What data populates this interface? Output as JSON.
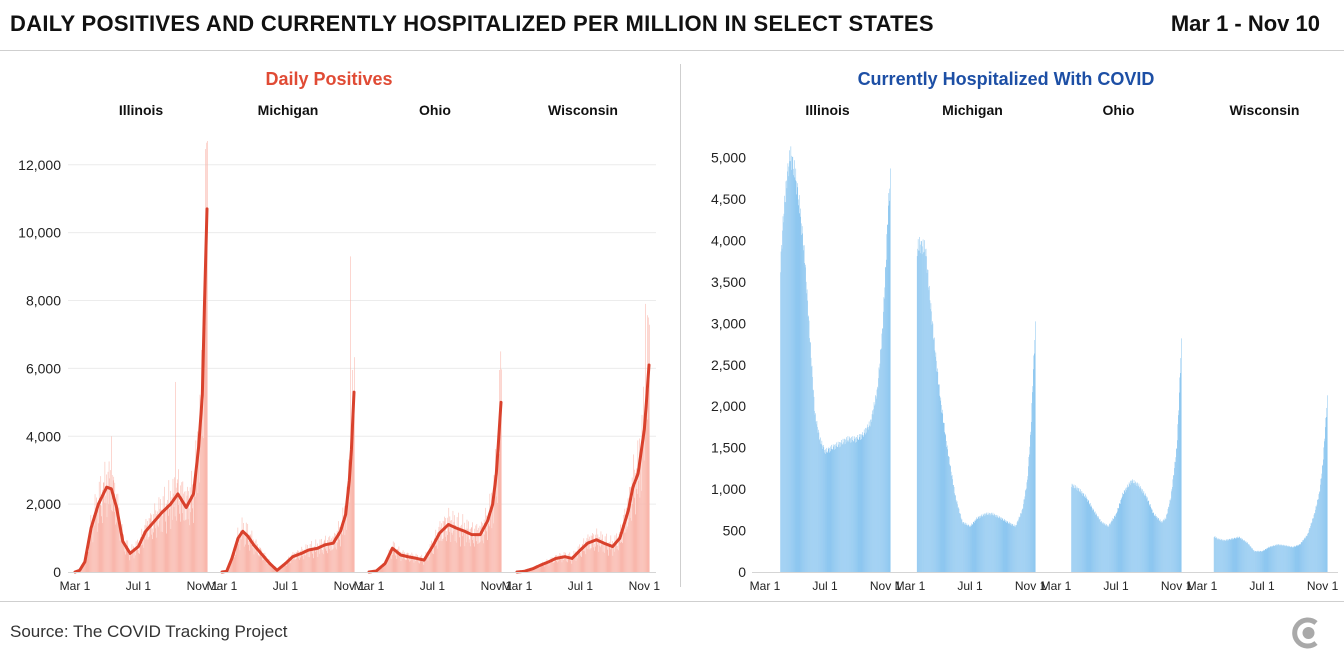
{
  "header": {
    "title": "DAILY POSITIVES AND CURRENTLY HOSPITALIZED PER MILLION IN SELECT STATES",
    "date_range": "Mar 1 - Nov 10"
  },
  "footer": {
    "source": "Source: The COVID Tracking Project",
    "logo_icon": "covid-tracking-project-logo-icon"
  },
  "colors": {
    "positives_bar": "#f9b7ac",
    "positives_line": "#d9412c",
    "positives_title": "#e04b35",
    "hospitalized_bar": "#8ec7f0",
    "hospitalized_title": "#1d4fa5",
    "grid": "#ececec",
    "logo": "#a9a9a9"
  },
  "chart_data": [
    {
      "type": "bar",
      "title": "Daily Positives",
      "facets": [
        "Illinois",
        "Michigan",
        "Ohio",
        "Wisconsin"
      ],
      "x_ticks": [
        "Mar 1",
        "Jul 1",
        "Nov 1"
      ],
      "y_ticks": [
        0,
        2000,
        4000,
        6000,
        8000,
        10000,
        12000
      ],
      "y_tick_labels": [
        "0",
        "2,000",
        "4,000",
        "6,000",
        "8,000",
        "10,000",
        "12,000"
      ],
      "ylim": [
        0,
        12700
      ],
      "x_range": [
        "Mar 1",
        "Nov 10"
      ],
      "grid": true,
      "series_style": "bars with 7-day average line",
      "series": [
        {
          "name": "Illinois",
          "dates": [
            "Mar 1",
            "Mar 10",
            "Mar 20",
            "Apr 1",
            "Apr 15",
            "May 1",
            "May 10",
            "May 20",
            "Jun 1",
            "Jun 15",
            "Jul 1",
            "Jul 15",
            "Aug 1",
            "Aug 15",
            "Sep 1",
            "Sep 15",
            "Oct 1",
            "Oct 15",
            "Oct 25",
            "Nov 1",
            "Nov 5",
            "Nov 10"
          ],
          "values": [
            0,
            50,
            300,
            1300,
            2000,
            2500,
            2450,
            1900,
            900,
            550,
            750,
            1200,
            1500,
            1750,
            2000,
            2300,
            1900,
            2300,
            3700,
            5200,
            7800,
            10700
          ],
          "peaks": [
            {
              "date": "May 10",
              "value": 4000
            },
            {
              "date": "Sep 10",
              "value": 5600
            },
            {
              "date": "Nov 9",
              "value": 12650
            }
          ]
        },
        {
          "name": "Michigan",
          "dates": [
            "Mar 1",
            "Mar 10",
            "Mar 20",
            "Apr 1",
            "Apr 10",
            "Apr 20",
            "May 1",
            "May 15",
            "Jun 1",
            "Jun 15",
            "Jul 1",
            "Jul 15",
            "Aug 1",
            "Aug 15",
            "Sep 1",
            "Sep 15",
            "Oct 1",
            "Oct 15",
            "Oct 25",
            "Nov 1",
            "Nov 5",
            "Nov 10"
          ],
          "values": [
            0,
            20,
            400,
            1000,
            1200,
            1050,
            800,
            550,
            250,
            50,
            250,
            450,
            550,
            650,
            700,
            800,
            850,
            1200,
            1700,
            2700,
            3600,
            5300
          ],
          "peaks": [
            {
              "date": "Nov 3",
              "value": 9300
            }
          ]
        },
        {
          "name": "Ohio",
          "dates": [
            "Mar 1",
            "Mar 15",
            "Apr 1",
            "Apr 15",
            "May 1",
            "May 15",
            "Jun 1",
            "Jun 15",
            "Jul 1",
            "Jul 15",
            "Aug 1",
            "Aug 15",
            "Sep 1",
            "Sep 15",
            "Oct 1",
            "Oct 15",
            "Oct 25",
            "Nov 1",
            "Nov 5",
            "Nov 10"
          ],
          "values": [
            0,
            30,
            250,
            700,
            500,
            450,
            400,
            350,
            750,
            1150,
            1400,
            1300,
            1200,
            1100,
            1100,
            1500,
            2000,
            2900,
            3800,
            5000
          ],
          "peaks": [
            {
              "date": "Nov 9",
              "value": 6500
            }
          ]
        },
        {
          "name": "Wisconsin",
          "dates": [
            "Mar 1",
            "Mar 15",
            "Apr 1",
            "Apr 15",
            "May 1",
            "May 15",
            "Jun 1",
            "Jun 15",
            "Jul 1",
            "Jul 15",
            "Aug 1",
            "Aug 15",
            "Sep 1",
            "Sep 15",
            "Oct 1",
            "Oct 10",
            "Oct 20",
            "Nov 1",
            "Nov 5",
            "Nov 10"
          ],
          "values": [
            0,
            20,
            100,
            200,
            300,
            400,
            450,
            400,
            650,
            850,
            950,
            850,
            750,
            1000,
            1800,
            2500,
            2900,
            4200,
            5000,
            6100
          ],
          "peaks": [
            {
              "date": "Nov 3",
              "value": 7900
            },
            {
              "date": "Nov 8",
              "value": 7500
            }
          ]
        }
      ]
    },
    {
      "type": "bar",
      "title": "Currently Hospitalized With COVID",
      "facets": [
        "Illinois",
        "Michigan",
        "Ohio",
        "Wisconsin"
      ],
      "x_ticks": [
        "Mar 1",
        "Jul 1",
        "Nov 1"
      ],
      "y_ticks": [
        0,
        500,
        1000,
        1500,
        2000,
        2500,
        3000,
        3500,
        4000,
        4500,
        5000
      ],
      "y_tick_labels": [
        "0",
        "500",
        "1,000",
        "1,500",
        "2,000",
        "2,500",
        "3,000",
        "3,500",
        "4,000",
        "4,500",
        "5,000"
      ],
      "ylim": [
        0,
        5200
      ],
      "x_range": [
        "Mar 1",
        "Nov 10"
      ],
      "grid": false,
      "series": [
        {
          "name": "Illinois",
          "dates": [
            "Apr 1",
            "Apr 7",
            "Apr 14",
            "Apr 21",
            "May 1",
            "May 10",
            "May 20",
            "Jun 1",
            "Jun 10",
            "Jun 20",
            "Jul 1",
            "Jul 15",
            "Aug 1",
            "Aug 15",
            "Sep 1",
            "Sep 15",
            "Oct 1",
            "Oct 15",
            "Oct 25",
            "Nov 1",
            "Nov 5",
            "Nov 10"
          ],
          "values": [
            3700,
            4300,
            4750,
            5050,
            4800,
            4400,
            3800,
            2700,
            1900,
            1600,
            1450,
            1500,
            1550,
            1600,
            1600,
            1650,
            1800,
            2200,
            2900,
            3700,
            4300,
            4750
          ]
        },
        {
          "name": "Michigan",
          "dates": [
            "Mar 15",
            "Mar 20",
            "Apr 1",
            "Apr 10",
            "Apr 20",
            "May 1",
            "May 15",
            "Jun 1",
            "Jun 15",
            "Jul 1",
            "Jul 15",
            "Aug 1",
            "Aug 15",
            "Sep 1",
            "Sep 15",
            "Oct 1",
            "Oct 15",
            "Oct 25",
            "Nov 1",
            "Nov 5",
            "Nov 10"
          ],
          "values": [
            3900,
            3950,
            3900,
            3300,
            2700,
            2100,
            1500,
            900,
            600,
            550,
            650,
            700,
            700,
            650,
            600,
            550,
            750,
            1100,
            1700,
            2300,
            2950
          ]
        },
        {
          "name": "Ohio",
          "dates": [
            "Apr 1",
            "Apr 15",
            "May 1",
            "May 15",
            "Jun 1",
            "Jun 15",
            "Jul 1",
            "Jul 15",
            "Aug 1",
            "Aug 15",
            "Sep 1",
            "Sep 15",
            "Oct 1",
            "Oct 10",
            "Oct 20",
            "Nov 1",
            "Nov 5",
            "Nov 10"
          ],
          "values": [
            1050,
            1000,
            900,
            750,
            600,
            550,
            700,
            950,
            1100,
            1050,
            900,
            700,
            600,
            650,
            900,
            1500,
            2000,
            2750
          ]
        },
        {
          "name": "Wisconsin",
          "dates": [
            "Mar 25",
            "Apr 1",
            "Apr 15",
            "May 1",
            "May 15",
            "Jun 1",
            "Jun 15",
            "Jul 1",
            "Jul 15",
            "Aug 1",
            "Aug 15",
            "Sep 1",
            "Sep 15",
            "Oct 1",
            "Oct 15",
            "Oct 25",
            "Nov 1",
            "Nov 5",
            "Nov 10"
          ],
          "values": [
            430,
            400,
            380,
            400,
            420,
            350,
            250,
            250,
            300,
            330,
            320,
            300,
            330,
            450,
            700,
            950,
            1300,
            1650,
            2080
          ]
        }
      ]
    }
  ]
}
